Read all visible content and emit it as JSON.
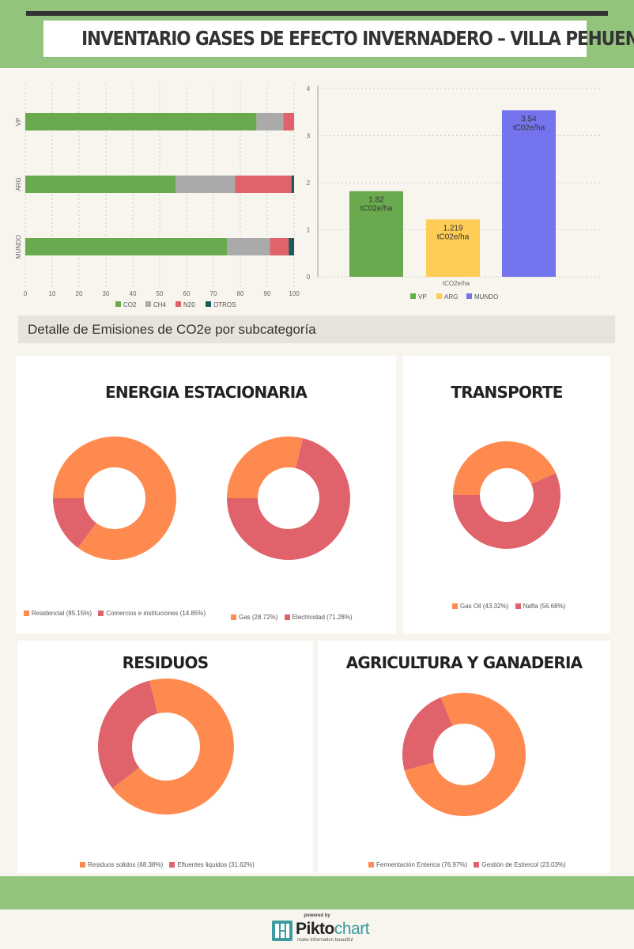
{
  "header": {
    "title": "INVENTARIO GASES DE EFECTO INVERNADERO – VILLA PEHUENIA"
  },
  "detail_title": "Detalle de Emisiones de CO2e por subcategoría",
  "colors": {
    "green": "#6aaa4e",
    "grey": "#aaaaaa",
    "red": "#e0626a",
    "dark": "#1f5a5a",
    "yellow": "#ffcc55",
    "blue": "#7474ee",
    "orange": "#ff8a50",
    "band": "#92c47d"
  },
  "chart_data": [
    {
      "type": "bar",
      "orientation": "horizontal",
      "stacked": true,
      "categories": [
        "VP",
        "ARG",
        "MUNDO"
      ],
      "series": [
        {
          "name": "CO2",
          "color": "#6aaa4e",
          "values": [
            86,
            56,
            75
          ]
        },
        {
          "name": "CH4",
          "color": "#aaaaaa",
          "values": [
            10,
            22,
            16
          ]
        },
        {
          "name": "N20",
          "color": "#e0626a",
          "values": [
            4,
            21,
            7
          ]
        },
        {
          "name": "OTROS",
          "color": "#1f5a5a",
          "values": [
            0,
            1,
            2
          ]
        }
      ],
      "xlim": [
        0,
        100
      ],
      "xticks": [
        "0",
        "10",
        "20",
        "30",
        "40",
        "50",
        "60",
        "70",
        "80",
        "90",
        "100"
      ],
      "grid": true,
      "legend": "bottom"
    },
    {
      "type": "bar",
      "categories": [
        "tCO2e/ha"
      ],
      "xlabel": "tCO2e/ha",
      "series": [
        {
          "name": "VP",
          "color": "#6aaa4e",
          "values": [
            1.82
          ],
          "label": "1.82",
          "unit": "tC02e/ha"
        },
        {
          "name": "ARG",
          "color": "#ffcc55",
          "values": [
            1.219
          ],
          "label": "1.219",
          "unit": "tC02e/ha"
        },
        {
          "name": "MUNDO",
          "color": "#7474ee",
          "values": [
            3.54
          ],
          "label": "3.54",
          "unit": "tC02e/ha"
        }
      ],
      "ylim": [
        0,
        4
      ],
      "yticks": [
        "0",
        "1",
        "2",
        "3",
        "4"
      ],
      "grid": true,
      "legend": "bottom"
    },
    {
      "type": "pie",
      "donut": true,
      "panel": "ENERGIA ESTACIONARIA",
      "slices": [
        {
          "name": "Residencial",
          "value": 85.15,
          "label": "Residencial (85.15%)",
          "color": "#ff8a50"
        },
        {
          "name": "Comercios e instituciones",
          "value": 14.85,
          "label": "Comercios e instituciones (14.85%)",
          "color": "#e0626a"
        }
      ]
    },
    {
      "type": "pie",
      "donut": true,
      "panel": "ENERGIA ESTACIONARIA",
      "slices": [
        {
          "name": "Gas",
          "value": 28.72,
          "label": "Gas (28.72%)",
          "color": "#ff8a50"
        },
        {
          "name": "Electricidad",
          "value": 71.28,
          "label": "Electricidad (71.28%)",
          "color": "#e0626a"
        }
      ]
    },
    {
      "type": "pie",
      "donut": true,
      "panel": "TRANSPORTE",
      "slices": [
        {
          "name": "Gas Oil",
          "value": 43.32,
          "label": "Gas Oil (43.32%)",
          "color": "#ff8a50"
        },
        {
          "name": "Nafta",
          "value": 56.68,
          "label": "Nafta (56.68%)",
          "color": "#e0626a"
        }
      ]
    },
    {
      "type": "pie",
      "donut": true,
      "panel": "RESIDUOS",
      "slices": [
        {
          "name": "Residuos solidos",
          "value": 68.38,
          "label": "Residuos solidos (68.38%)",
          "color": "#ff8a50"
        },
        {
          "name": "Efluentes liquidos",
          "value": 31.62,
          "label": "Efluentes liquidos (31.62%)",
          "color": "#e0626a"
        }
      ]
    },
    {
      "type": "pie",
      "donut": true,
      "panel": "AGRICULTURA Y GANADERIA",
      "slices": [
        {
          "name": "Fermentación Enterica",
          "value": 76.97,
          "label": "Fermentación Enterica (76.97%)",
          "color": "#ff8a50"
        },
        {
          "name": "Gestión de Estiercol",
          "value": 23.03,
          "label": "Gestión de Estiercol (23.03%)",
          "color": "#e0626a"
        }
      ]
    }
  ],
  "panels": {
    "energia": "ENERGIA ESTACIONARIA",
    "transporte": "TRANSPORTE",
    "residuos": "RESIDUOS",
    "agricultura": "AGRICULTURA Y GANADERIA"
  },
  "footer": {
    "powered": "powered by",
    "brand_bold": "Pikto",
    "brand_light": "chart",
    "tagline": "make information beautiful"
  }
}
